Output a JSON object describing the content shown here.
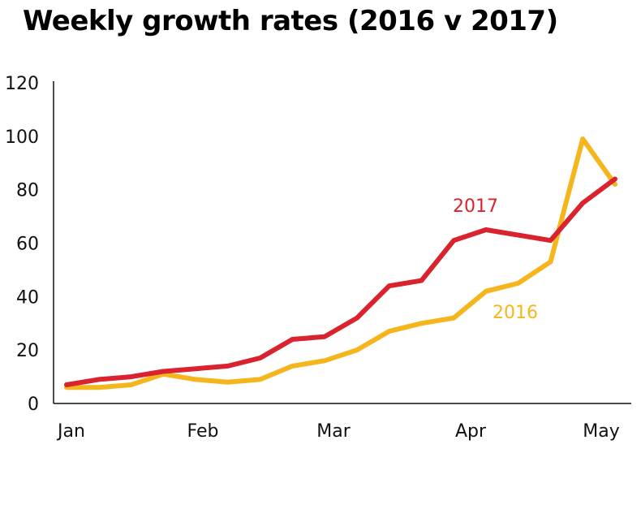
{
  "chart_data": {
    "type": "line",
    "title": "Weekly growth rates (2016 v 2017)",
    "xlabel": "",
    "ylabel": "",
    "ylim": [
      0,
      120
    ],
    "yticks": [
      "0",
      "20",
      "40",
      "60",
      "80",
      "100",
      "120"
    ],
    "xticks": [
      "Jan",
      "Feb",
      "Mar",
      "Apr",
      "May"
    ],
    "x": [
      1,
      2,
      3,
      4,
      5,
      6,
      7,
      8,
      9,
      10,
      11,
      12,
      13,
      14,
      15,
      16,
      17,
      18
    ],
    "series": [
      {
        "name": "2017",
        "color": "#d9232e",
        "values": [
          7,
          9,
          10,
          12,
          13,
          14,
          17,
          24,
          25,
          32,
          44,
          46,
          61,
          65,
          63,
          61,
          75,
          84
        ]
      },
      {
        "name": "2016",
        "color": "#f5b61d",
        "values": [
          6,
          6,
          7,
          11,
          9,
          8,
          9,
          14,
          16,
          20,
          27,
          30,
          32,
          42,
          45,
          53,
          99,
          82
        ]
      }
    ],
    "grid": false
  }
}
